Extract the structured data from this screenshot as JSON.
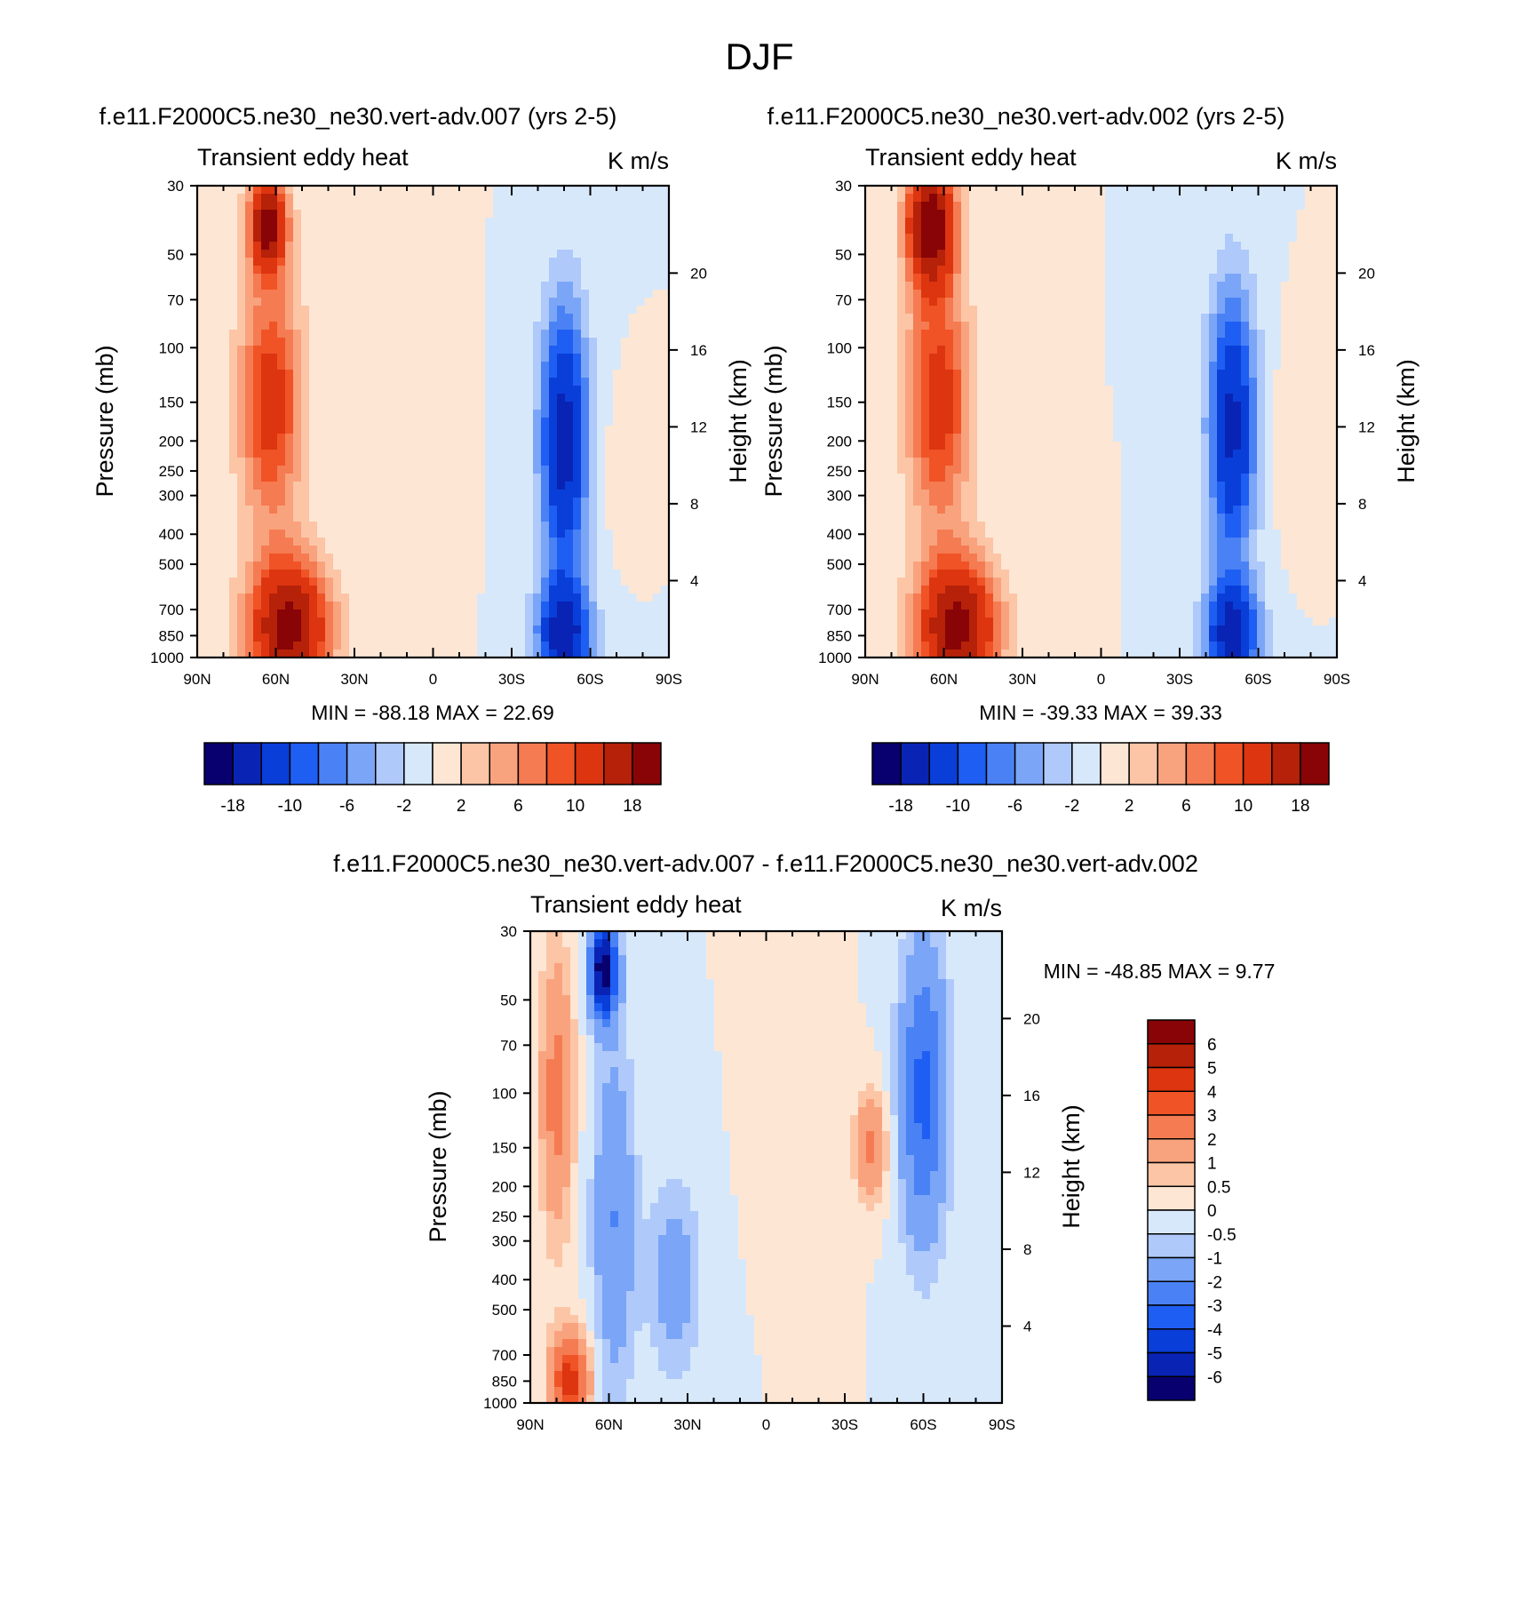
{
  "title": "DJF",
  "palette_main": [
    "#08006e",
    "#0924b5",
    "#0a3ed8",
    "#1f5ef2",
    "#4a82f5",
    "#7ba5f7",
    "#aec9fa",
    "#d8e8fb",
    "#fde6d4",
    "#fcc5a6",
    "#f9a37e",
    "#f57b52",
    "#f05326",
    "#dd3510",
    "#b52109",
    "#880406"
  ],
  "palette_diff": [
    "#08006e",
    "#0924b5",
    "#0a3ed8",
    "#1f5ef2",
    "#4a82f5",
    "#7ba5f7",
    "#aec9fa",
    "#d8e8fb",
    "#fde6d4",
    "#fcc5a6",
    "#f9a37e",
    "#f57b52",
    "#f05326",
    "#dd3510",
    "#b52109",
    "#880406"
  ],
  "chart_data": [
    {
      "type": "heatmap",
      "id": "panel1",
      "title": "f.e11.F2000C5.ne30_ne30.vert-adv.007 (yrs 2-5)",
      "left_label": "Transient eddy heat",
      "right_label": "K m/s",
      "xlabel": "",
      "ylabel": "Pressure (mb)",
      "y2label": "Height (km)",
      "x_ticks": [
        "90N",
        "60N",
        "30N",
        "0",
        "30S",
        "60S",
        "90S"
      ],
      "x_range": [
        90,
        -90
      ],
      "y_ticks": [
        "30",
        "50",
        "70",
        "100",
        "150",
        "200",
        "250",
        "300",
        "400",
        "500",
        "700",
        "850",
        "1000"
      ],
      "y_range_mb": [
        30,
        1000
      ],
      "height_ticks_km": [
        "4",
        "8",
        "12",
        "16",
        "20"
      ],
      "min_max": "MIN = -88.18  MAX =  22.69",
      "colorbar_labels": [
        "-18",
        "-10",
        "-6",
        "-2",
        "2",
        "6",
        "10",
        "18"
      ],
      "features": [
        {
          "lat": 63,
          "p": 40,
          "value": 20,
          "w": 7,
          "h": 0.35
        },
        {
          "lat": 62,
          "p": 150,
          "value": 12,
          "w": 12,
          "h": 0.9
        },
        {
          "lat": 55,
          "p": 800,
          "value": 20,
          "w": 15,
          "h": 0.5
        },
        {
          "lat": 15,
          "p": 250,
          "value": 1.0,
          "w": 12,
          "h": 2.0
        },
        {
          "lat": -50,
          "p": 200,
          "value": -16,
          "w": 9,
          "h": 1.0
        },
        {
          "lat": -50,
          "p": 850,
          "value": -16,
          "w": 10,
          "h": 0.4
        },
        {
          "lat": -70,
          "p": 250,
          "value": 0.8,
          "w": 6,
          "h": 0.5
        }
      ]
    },
    {
      "type": "heatmap",
      "id": "panel2",
      "title": "f.e11.F2000C5.ne30_ne30.vert-adv.002 (yrs 2-5)",
      "left_label": "Transient eddy heat",
      "right_label": "K m/s",
      "xlabel": "",
      "ylabel": "Pressure (mb)",
      "y2label": "Height (km)",
      "x_ticks": [
        "90N",
        "60N",
        "30N",
        "0",
        "30S",
        "60S",
        "90S"
      ],
      "x_range": [
        90,
        -90
      ],
      "y_ticks": [
        "30",
        "50",
        "70",
        "100",
        "150",
        "200",
        "250",
        "300",
        "400",
        "500",
        "700",
        "850",
        "1000"
      ],
      "y_range_mb": [
        30,
        1000
      ],
      "height_ticks_km": [
        "4",
        "8",
        "12",
        "16",
        "20"
      ],
      "min_max": "MIN = -39.33  MAX =  39.33",
      "colorbar_labels": [
        "-18",
        "-10",
        "-6",
        "-2",
        "2",
        "6",
        "10",
        "18"
      ],
      "features": [
        {
          "lat": 65,
          "p": 40,
          "value": 22,
          "w": 9,
          "h": 0.45
        },
        {
          "lat": 62,
          "p": 150,
          "value": 12,
          "w": 12,
          "h": 0.9
        },
        {
          "lat": 55,
          "p": 800,
          "value": 20,
          "w": 15,
          "h": 0.5
        },
        {
          "lat": -50,
          "p": 180,
          "value": -15,
          "w": 9,
          "h": 1.0
        },
        {
          "lat": -50,
          "p": 850,
          "value": -16,
          "w": 10,
          "h": 0.4
        },
        {
          "lat": -72,
          "p": 200,
          "value": 1.5,
          "w": 6,
          "h": 0.6
        }
      ]
    },
    {
      "type": "heatmap",
      "id": "panel3",
      "title": "f.e11.F2000C5.ne30_ne30.vert-adv.007 - f.e11.F2000C5.ne30_ne30.vert-adv.002",
      "left_label": "Transient eddy heat",
      "right_label": "K m/s",
      "xlabel": "",
      "ylabel": "Pressure (mb)",
      "y2label": "Height (km)",
      "x_ticks": [
        "90N",
        "60N",
        "30N",
        "0",
        "30S",
        "60S",
        "90S"
      ],
      "x_range": [
        90,
        -90
      ],
      "y_ticks": [
        "30",
        "50",
        "70",
        "100",
        "150",
        "200",
        "250",
        "300",
        "400",
        "500",
        "700",
        "850",
        "1000"
      ],
      "y_range_mb": [
        30,
        1000
      ],
      "height_ticks_km": [
        "4",
        "8",
        "12",
        "16",
        "20"
      ],
      "min_max": "MIN = -48.85  MAX =   9.77",
      "colorbar_labels": [
        "6",
        "5",
        "4",
        "3",
        "2",
        "1",
        "0.5",
        "0",
        "-0.5",
        "-1",
        "-2",
        "-3",
        "-4",
        "-5",
        "-6"
      ],
      "features": [
        {
          "lat": 62,
          "p": 40,
          "value": -7,
          "w": 5,
          "h": 0.35
        },
        {
          "lat": 58,
          "p": 250,
          "value": -2.0,
          "w": 8,
          "h": 1.3
        },
        {
          "lat": 35,
          "p": 400,
          "value": -1.5,
          "w": 10,
          "h": 0.7
        },
        {
          "lat": 80,
          "p": 100,
          "value": 2.5,
          "w": 6,
          "h": 1.0
        },
        {
          "lat": 75,
          "p": 850,
          "value": 4.5,
          "w": 7,
          "h": 0.35
        },
        {
          "lat": -40,
          "p": 150,
          "value": 2.2,
          "w": 6,
          "h": 0.4
        },
        {
          "lat": -60,
          "p": 100,
          "value": -3.3,
          "w": 9,
          "h": 1.1
        },
        {
          "lat": -20,
          "p": 100,
          "value": 0.4,
          "w": 7,
          "h": 1.5
        },
        {
          "lat": 5,
          "p": 60,
          "value": 0.4,
          "w": 5,
          "h": 0.8
        }
      ]
    }
  ]
}
